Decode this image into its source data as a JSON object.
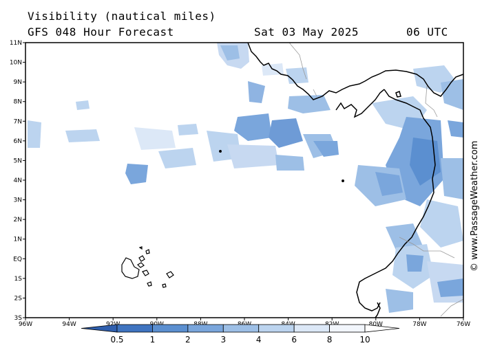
{
  "header": {
    "title": "Visibility (nautical miles)",
    "model": "GFS 048 Hour Forecast",
    "date": "Sat 03 May 2025",
    "time": "06 UTC"
  },
  "credit": "© www.PassageWeather.com",
  "axes": {
    "lat_labels": [
      "11N",
      "10N",
      "9N",
      "8N",
      "7N",
      "6N",
      "5N",
      "4N",
      "3N",
      "2N",
      "1N",
      "EQ",
      "1S",
      "2S",
      "3S"
    ],
    "lon_labels": [
      "96W",
      "94W",
      "92W",
      "90W",
      "88W",
      "86W",
      "84W",
      "82W",
      "80W",
      "78W",
      "76W"
    ]
  },
  "legend": {
    "levels": [
      "0.5",
      "1",
      "2",
      "3",
      "4",
      "6",
      "8",
      "10"
    ],
    "colors": [
      "#2f5fae",
      "#3f74c0",
      "#5b8fd0",
      "#7aa6dc",
      "#9dbfe6",
      "#bcd4ef",
      "#dce8f7",
      "#f2f6fc"
    ]
  }
}
